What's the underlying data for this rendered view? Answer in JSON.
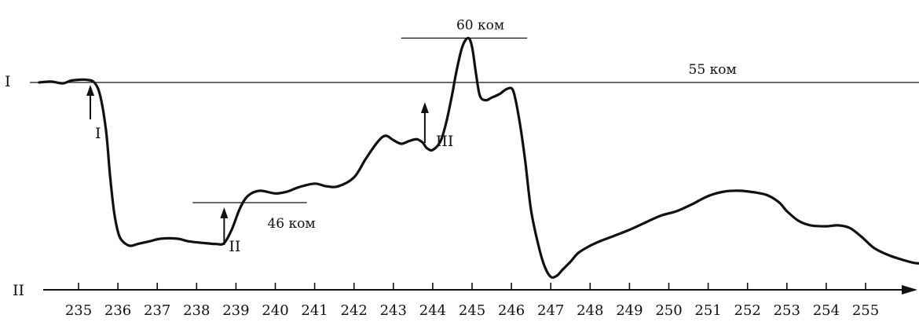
{
  "chart_data": {
    "type": "line",
    "title": "",
    "curve_label": "I",
    "axis_label": "II",
    "x_ticks": [
      "235",
      "236",
      "237",
      "238",
      "239",
      "240",
      "241",
      "242",
      "243",
      "244",
      "245",
      "246",
      "247",
      "248",
      "249",
      "250",
      "251",
      "252",
      "253",
      "254",
      "255"
    ],
    "xlim": [
      234.0,
      256.4
    ],
    "reference_levels": [
      {
        "label": "55 ком",
        "value": 55
      },
      {
        "label": "60 ком",
        "value": 60
      },
      {
        "label": "46 ком",
        "value": 46
      }
    ],
    "markers": [
      {
        "label": "I",
        "x": 235.3
      },
      {
        "label": "II",
        "x": 238.7
      },
      {
        "label": "III",
        "x": 243.8
      }
    ],
    "series": [
      {
        "x": [
          234.0,
          234.3,
          234.6,
          234.8,
          235.0,
          235.2,
          235.4,
          235.55,
          235.7,
          235.8,
          235.9,
          236.0,
          236.1,
          236.3,
          236.5,
          236.8,
          237.1,
          237.5,
          237.8,
          238.2,
          238.5,
          238.7,
          238.9,
          239.1,
          239.3,
          239.6,
          240.0,
          240.3,
          240.6,
          241.0,
          241.3,
          241.6,
          242.0,
          242.3,
          242.6,
          242.8,
          243.0,
          243.2,
          243.4,
          243.6,
          243.75,
          243.85,
          244.0,
          244.2,
          244.35,
          244.5,
          244.6,
          244.75,
          244.9,
          245.0,
          245.1,
          245.2,
          245.35,
          245.5,
          245.7,
          245.9,
          246.05,
          246.2,
          246.35,
          246.5,
          246.7,
          246.85,
          247.0,
          247.15,
          247.3,
          247.5,
          247.7,
          248.0,
          248.3,
          248.6,
          249.0,
          249.4,
          249.8,
          250.2,
          250.6,
          251.0,
          251.4,
          251.8,
          252.2,
          252.5,
          252.8,
          253.0,
          253.3,
          253.6,
          254.0,
          254.3,
          254.6,
          254.9,
          255.2,
          255.5,
          255.8,
          256.2,
          256.4
        ],
        "values": [
          55.0,
          55.1,
          54.9,
          55.2,
          55.3,
          55.3,
          55.0,
          53.5,
          49.5,
          44.5,
          40.5,
          38.2,
          37.2,
          36.6,
          36.8,
          37.1,
          37.4,
          37.4,
          37.1,
          36.9,
          36.8,
          36.9,
          38.5,
          40.8,
          42.2,
          42.8,
          42.5,
          42.7,
          43.2,
          43.6,
          43.3,
          43.3,
          44.3,
          46.4,
          48.3,
          49.0,
          48.5,
          48.1,
          48.4,
          48.6,
          48.2,
          47.6,
          47.4,
          48.4,
          50.6,
          53.8,
          56.2,
          59.0,
          60.0,
          59.0,
          56.0,
          53.5,
          53.0,
          53.3,
          53.7,
          54.3,
          54.0,
          50.8,
          46.2,
          40.6,
          36.4,
          34.2,
          33.1,
          33.2,
          33.9,
          34.8,
          35.8,
          36.6,
          37.2,
          37.7,
          38.4,
          39.2,
          40.0,
          40.5,
          41.3,
          42.2,
          42.7,
          42.8,
          42.6,
          42.3,
          41.5,
          40.5,
          39.4,
          38.9,
          38.8,
          38.9,
          38.6,
          37.6,
          36.4,
          35.7,
          35.2,
          34.7,
          34.6
        ]
      }
    ],
    "grid": false,
    "legend": "none"
  }
}
